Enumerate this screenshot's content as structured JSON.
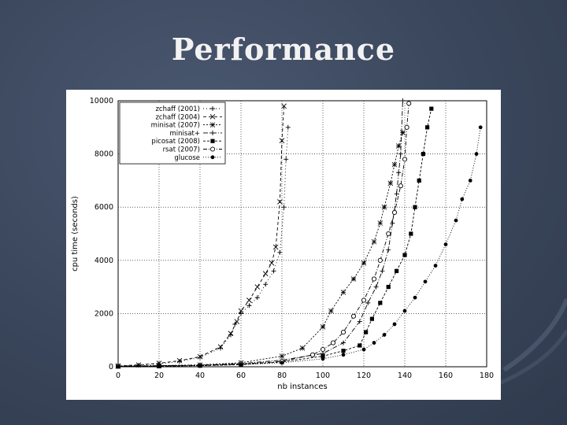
{
  "slide": {
    "title": "Performance"
  },
  "colors": {
    "background": "#3a465b",
    "title": "#f2f2f2",
    "plot": "#000000"
  },
  "chart_data": {
    "type": "scatter",
    "xlabel": "nb instances",
    "ylabel": "cpu time (seconds)",
    "xlim": [
      0,
      180
    ],
    "ylim": [
      0,
      10000
    ],
    "xticks": [
      "0",
      "20",
      "40",
      "60",
      "80",
      "100",
      "120",
      "140",
      "160",
      "180"
    ],
    "yticks": [
      "0",
      "2000",
      "4000",
      "6000",
      "8000",
      "10000"
    ],
    "grid": true,
    "legend_position": "top-left",
    "series": [
      {
        "name": "zchaff (2001)",
        "marker": "plus",
        "dash": "1 3",
        "points": [
          [
            0,
            30
          ],
          [
            10,
            60
          ],
          [
            20,
            110
          ],
          [
            30,
            200
          ],
          [
            40,
            350
          ],
          [
            50,
            700
          ],
          [
            55,
            1200
          ],
          [
            57,
            1600
          ],
          [
            60,
            2000
          ],
          [
            64,
            2300
          ],
          [
            68,
            2600
          ],
          [
            72,
            3100
          ],
          [
            76,
            3600
          ],
          [
            79,
            4300
          ],
          [
            81,
            6000
          ],
          [
            82,
            7800
          ],
          [
            83,
            9000
          ]
        ]
      },
      {
        "name": "zchaff (2004)",
        "marker": "x",
        "dash": "4 3",
        "points": [
          [
            0,
            30
          ],
          [
            10,
            70
          ],
          [
            20,
            130
          ],
          [
            30,
            230
          ],
          [
            40,
            380
          ],
          [
            50,
            750
          ],
          [
            55,
            1250
          ],
          [
            58,
            1700
          ],
          [
            60,
            2100
          ],
          [
            64,
            2500
          ],
          [
            68,
            3000
          ],
          [
            72,
            3500
          ],
          [
            75,
            3900
          ],
          [
            77,
            4500
          ],
          [
            79,
            6200
          ],
          [
            80,
            8500
          ],
          [
            81,
            9800
          ]
        ]
      },
      {
        "name": "minisat (2007)",
        "marker": "star",
        "dash": "2 2",
        "points": [
          [
            0,
            20
          ],
          [
            20,
            40
          ],
          [
            40,
            70
          ],
          [
            60,
            150
          ],
          [
            80,
            400
          ],
          [
            90,
            700
          ],
          [
            100,
            1500
          ],
          [
            104,
            2100
          ],
          [
            110,
            2800
          ],
          [
            115,
            3300
          ],
          [
            120,
            3900
          ],
          [
            125,
            4700
          ],
          [
            128,
            5400
          ],
          [
            130,
            6000
          ],
          [
            133,
            6900
          ],
          [
            135,
            7600
          ],
          [
            137,
            8300
          ],
          [
            139,
            8800
          ]
        ]
      },
      {
        "name": "minisat+",
        "marker": "plus",
        "dash": "6 2 1 2",
        "points": [
          [
            0,
            20
          ],
          [
            20,
            40
          ],
          [
            40,
            60
          ],
          [
            60,
            120
          ],
          [
            80,
            250
          ],
          [
            100,
            500
          ],
          [
            110,
            900
          ],
          [
            118,
            1700
          ],
          [
            122,
            2400
          ],
          [
            126,
            3000
          ],
          [
            129,
            3600
          ],
          [
            132,
            4400
          ],
          [
            134,
            5400
          ],
          [
            136,
            6500
          ],
          [
            137,
            7300
          ],
          [
            138,
            8000
          ],
          [
            139,
            10000
          ]
        ]
      },
      {
        "name": "picosat (2008)",
        "marker": "square",
        "dash": "3 2",
        "points": [
          [
            0,
            10
          ],
          [
            20,
            20
          ],
          [
            40,
            40
          ],
          [
            60,
            80
          ],
          [
            80,
            180
          ],
          [
            100,
            400
          ],
          [
            110,
            600
          ],
          [
            118,
            800
          ],
          [
            121,
            1300
          ],
          [
            124,
            1800
          ],
          [
            128,
            2400
          ],
          [
            132,
            3000
          ],
          [
            136,
            3600
          ],
          [
            140,
            4200
          ],
          [
            143,
            5000
          ],
          [
            145,
            6000
          ],
          [
            147,
            7000
          ],
          [
            149,
            8000
          ],
          [
            151,
            9000
          ],
          [
            153,
            9700
          ]
        ]
      },
      {
        "name": "rsat (2007)",
        "marker": "circle-open",
        "dash": "5 2 1 2",
        "points": [
          [
            0,
            20
          ],
          [
            20,
            30
          ],
          [
            40,
            50
          ],
          [
            60,
            100
          ],
          [
            80,
            200
          ],
          [
            95,
            450
          ],
          [
            100,
            650
          ],
          [
            105,
            900
          ],
          [
            110,
            1300
          ],
          [
            115,
            1900
          ],
          [
            120,
            2500
          ],
          [
            125,
            3300
          ],
          [
            128,
            4000
          ],
          [
            132,
            5000
          ],
          [
            135,
            5800
          ],
          [
            138,
            6800
          ],
          [
            140,
            7800
          ],
          [
            141,
            9000
          ],
          [
            142,
            9900
          ]
        ]
      },
      {
        "name": "glucose",
        "marker": "circle",
        "dash": "1 2",
        "points": [
          [
            0,
            10
          ],
          [
            20,
            20
          ],
          [
            40,
            40
          ],
          [
            60,
            80
          ],
          [
            80,
            150
          ],
          [
            100,
            300
          ],
          [
            110,
            450
          ],
          [
            120,
            650
          ],
          [
            125,
            900
          ],
          [
            130,
            1200
          ],
          [
            135,
            1600
          ],
          [
            140,
            2100
          ],
          [
            145,
            2600
          ],
          [
            150,
            3200
          ],
          [
            155,
            3800
          ],
          [
            160,
            4600
          ],
          [
            165,
            5500
          ],
          [
            168,
            6300
          ],
          [
            172,
            7000
          ],
          [
            175,
            8000
          ],
          [
            177,
            9000
          ]
        ]
      }
    ]
  }
}
